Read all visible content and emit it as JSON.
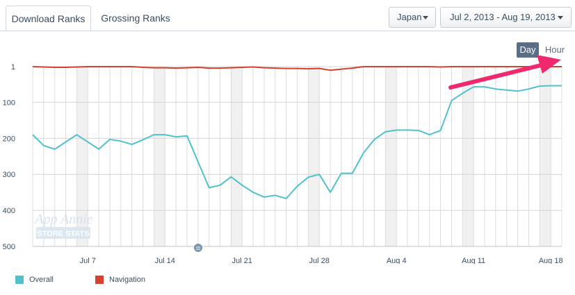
{
  "tabs": [
    {
      "label": "Download Ranks",
      "active": true
    },
    {
      "label": "Grossing Ranks",
      "active": false
    }
  ],
  "filters": {
    "country": "Japan",
    "date_range": "Jul 2, 2013 - Aug 19, 2013"
  },
  "granularity": {
    "day": "Day",
    "hour": "Hour",
    "selected": "Day"
  },
  "watermark": {
    "line1": "App Annie",
    "line2": "STORE STATS"
  },
  "colors": {
    "overall": "#4fc1cb",
    "navigation": "#d6402e",
    "weekend_band": "#f0f0f0",
    "grid": "#dcdcdc",
    "arrow": "#f0286e",
    "toggle_active": "#5a6f86"
  },
  "icons": {
    "dropdown": "caret-down-icon",
    "annotation": "speech-bubble-icon",
    "pointer": "arrow-icon"
  },
  "chart_data": {
    "type": "line",
    "title": "",
    "xlabel": "",
    "ylabel": "",
    "y_inverted": true,
    "ylim": [
      500,
      1
    ],
    "yticks": [
      "1",
      "100",
      "200",
      "300",
      "400",
      "500"
    ],
    "ytick_values": [
      1,
      100,
      200,
      300,
      400,
      500
    ],
    "xticks": [
      "Jul 7",
      "Jul 14",
      "Jul 21",
      "Jul 28",
      "Aug 4",
      "Aug 11",
      "Aug 18"
    ],
    "xtick_dates": [
      "2013-07-07",
      "2013-07-14",
      "2013-07-21",
      "2013-07-28",
      "2013-08-04",
      "2013-08-11",
      "2013-08-18"
    ],
    "x": [
      "2013-07-02",
      "2013-07-03",
      "2013-07-04",
      "2013-07-05",
      "2013-07-06",
      "2013-07-07",
      "2013-07-08",
      "2013-07-09",
      "2013-07-10",
      "2013-07-11",
      "2013-07-12",
      "2013-07-13",
      "2013-07-14",
      "2013-07-15",
      "2013-07-16",
      "2013-07-17",
      "2013-07-18",
      "2013-07-19",
      "2013-07-20",
      "2013-07-21",
      "2013-07-22",
      "2013-07-23",
      "2013-07-24",
      "2013-07-25",
      "2013-07-26",
      "2013-07-27",
      "2013-07-28",
      "2013-07-29",
      "2013-07-30",
      "2013-07-31",
      "2013-08-01",
      "2013-08-02",
      "2013-08-03",
      "2013-08-04",
      "2013-08-05",
      "2013-08-06",
      "2013-08-07",
      "2013-08-08",
      "2013-08-09",
      "2013-08-10",
      "2013-08-11",
      "2013-08-12",
      "2013-08-13",
      "2013-08-14",
      "2013-08-15",
      "2013-08-16",
      "2013-08-17",
      "2013-08-18",
      "2013-08-19"
    ],
    "weekends": [
      [
        "2013-07-06",
        "2013-07-07"
      ],
      [
        "2013-07-13",
        "2013-07-14"
      ],
      [
        "2013-07-20",
        "2013-07-21"
      ],
      [
        "2013-07-27",
        "2013-07-28"
      ],
      [
        "2013-08-03",
        "2013-08-04"
      ],
      [
        "2013-08-10",
        "2013-08-11"
      ],
      [
        "2013-08-17",
        "2013-08-18"
      ]
    ],
    "legend_position": "bottom-left",
    "grid": true,
    "series": [
      {
        "name": "Overall",
        "values": [
          190,
          220,
          230,
          210,
          190,
          210,
          230,
          203,
          208,
          217,
          204,
          190,
          190,
          196,
          193,
          265,
          337,
          330,
          307,
          330,
          350,
          363,
          358,
          367,
          333,
          308,
          300,
          350,
          297,
          297,
          241,
          203,
          182,
          177,
          177,
          178,
          190,
          178,
          95,
          75,
          57,
          57,
          63,
          66,
          69,
          63,
          55,
          54,
          54
        ]
      },
      {
        "name": "Navigation",
        "values": [
          1,
          2,
          3,
          3,
          2,
          1,
          1,
          1,
          1,
          1,
          3,
          4,
          4,
          5,
          4,
          3,
          5,
          5,
          4,
          3,
          2,
          4,
          5,
          6,
          6,
          7,
          6,
          11,
          8,
          5,
          1,
          1,
          1,
          1,
          1,
          1,
          1,
          2,
          1,
          1,
          1,
          1,
          1,
          1,
          1,
          1,
          1,
          1,
          1
        ]
      }
    ]
  }
}
